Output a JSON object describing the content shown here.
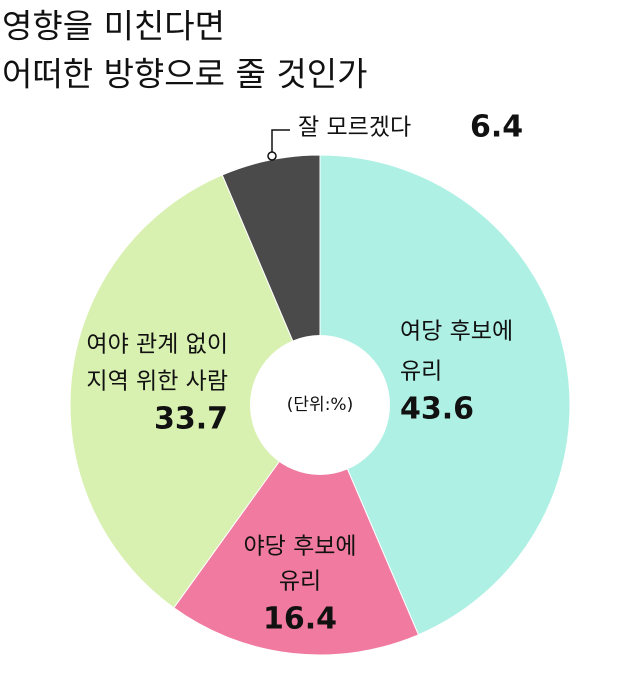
{
  "chart_data": {
    "type": "donut",
    "title": [
      "영향을 미친다면",
      "어떠한 방향으로 줄 것인가"
    ],
    "center_label": "(단위:%)",
    "categories": [
      [
        "여당 후보에",
        "유리"
      ],
      [
        "야당 후보에",
        "유리"
      ],
      [
        "여야 관계 없이",
        "지역 위한 사람"
      ],
      [
        "잘 모르겠다"
      ]
    ],
    "values": [
      43.6,
      16.4,
      33.7,
      6.4
    ],
    "colors": [
      "#aef0e4",
      "#f07aa0",
      "#d8f0b0",
      "#4a4a4a"
    ]
  }
}
